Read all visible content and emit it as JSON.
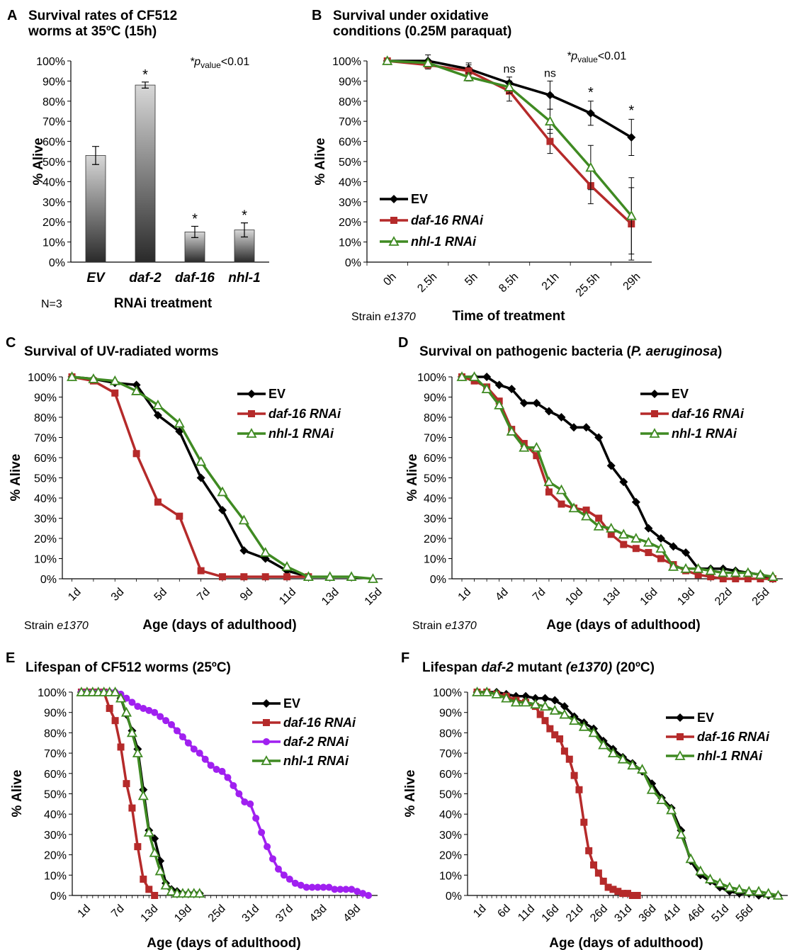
{
  "chart_data": [
    {
      "id": "A",
      "letter": "A",
      "type": "bar",
      "title_lines": [
        "Survival rates of CF512",
        "worms at 35ºC (15h)"
      ],
      "ylabel": "% Alive",
      "xlabel": "RNAi treatment",
      "note": "N=3",
      "pvalue": {
        "prefix": "*p",
        "sub": "value",
        "suffix": "<0.01"
      },
      "categories": [
        "EV",
        "daf-2",
        "daf-16",
        "nhl-1"
      ],
      "values": [
        53,
        88,
        15,
        16
      ],
      "errors": [
        4.5,
        1.5,
        2.8,
        3.5
      ],
      "significance": [
        "",
        "*",
        "*",
        "*"
      ],
      "ylim": [
        0,
        100
      ],
      "yticks": [
        "0%",
        "10%",
        "20%",
        "30%",
        "40%",
        "50%",
        "60%",
        "70%",
        "80%",
        "90%",
        "100%"
      ]
    },
    {
      "id": "B",
      "letter": "B",
      "type": "line",
      "title_lines": [
        "Survival under oxidative",
        "conditions (0.25M paraquat)"
      ],
      "ylabel": "% Alive",
      "xlabel": "Time of treatment",
      "strain_label": "Strain ",
      "strain_value": "e1370",
      "pvalue": {
        "prefix": "*p",
        "sub": "value",
        "suffix": "<0.01"
      },
      "categories": [
        "0h",
        "2.5h",
        "5h",
        "8.5h",
        "21h",
        "25.5h",
        "29h"
      ],
      "annotations": [
        "",
        "",
        "",
        "ns",
        "ns",
        "*",
        "*"
      ],
      "ylim": [
        0,
        100
      ],
      "yticks": [
        "0%",
        "10%",
        "20%",
        "30%",
        "40%",
        "50%",
        "60%",
        "70%",
        "80%",
        "90%",
        "100%"
      ],
      "series": [
        {
          "name": "EV",
          "color": "#000000",
          "marker": "diamond",
          "values": [
            100,
            100,
            96,
            89,
            83,
            74,
            62
          ],
          "errors": [
            0,
            3,
            3,
            3,
            7,
            6,
            9
          ]
        },
        {
          "name": "daf-16 RNAi",
          "color": "#b52a2a",
          "marker": "square",
          "values": [
            100,
            98,
            95,
            85,
            60,
            38,
            19
          ],
          "errors": [
            0,
            2,
            3,
            5,
            6,
            9,
            18
          ]
        },
        {
          "name": "nhl-1 RNAi",
          "color": "#3f8a22",
          "marker": "triangle",
          "values": [
            100,
            99,
            92,
            87,
            70,
            47,
            23
          ],
          "errors": [
            0,
            1,
            2,
            3,
            6,
            11,
            19
          ]
        }
      ]
    },
    {
      "id": "C",
      "letter": "C",
      "type": "line",
      "title_lines": [
        "Survival of UV-radiated worms"
      ],
      "ylabel": "% Alive",
      "xlabel": "Age (days of adulthood)",
      "strain_label": "Strain ",
      "strain_value": "e1370",
      "xrange": [
        1,
        15
      ],
      "xticks": [
        1,
        3,
        5,
        7,
        9,
        11,
        13,
        15
      ],
      "xtick_labels": [
        "1d",
        "3d",
        "5d",
        "7d",
        "9d",
        "11d",
        "13d",
        "15d"
      ],
      "ylim": [
        0,
        100
      ],
      "yticks": [
        "0%",
        "10%",
        "20%",
        "30%",
        "40%",
        "50%",
        "60%",
        "70%",
        "80%",
        "90%",
        "100%"
      ],
      "series": [
        {
          "name": "EV",
          "color": "#000000",
          "marker": "diamond",
          "x": [
            1,
            2,
            3,
            4,
            5,
            6,
            7,
            8,
            9,
            10,
            11,
            12
          ],
          "values": [
            100,
            99,
            97,
            96,
            81,
            73,
            50,
            34,
            14,
            10,
            4,
            1
          ]
        },
        {
          "name": "daf-16 RNAi",
          "color": "#b52a2a",
          "marker": "square",
          "x": [
            1,
            2,
            3,
            4,
            5,
            6,
            7,
            8,
            9,
            10,
            11,
            12
          ],
          "values": [
            100,
            98,
            92,
            62,
            38,
            31,
            4,
            1,
            1,
            1,
            1,
            1
          ]
        },
        {
          "name": "nhl-1 RNAi",
          "color": "#3f8a22",
          "marker": "triangle",
          "x": [
            1,
            2,
            3,
            4,
            5,
            6,
            7,
            8,
            9,
            10,
            11,
            12,
            13,
            14,
            15
          ],
          "values": [
            100,
            99,
            98,
            93,
            86,
            77,
            58,
            43,
            29,
            13,
            6,
            1,
            1,
            1,
            0
          ]
        }
      ]
    },
    {
      "id": "D",
      "letter": "D",
      "type": "line",
      "title_parts": [
        "Survival on pathogenic bacteria (",
        "P. aeruginosa",
        ")"
      ],
      "ylabel": "% Alive",
      "xlabel": "Age (days of adulthood)",
      "strain_label": "Strain ",
      "strain_value": "e1370",
      "xrange": [
        1,
        26
      ],
      "xticks": [
        1,
        4,
        7,
        10,
        13,
        16,
        19,
        22,
        25
      ],
      "xtick_labels": [
        "1d",
        "4d",
        "7d",
        "10d",
        "13d",
        "16d",
        "19d",
        "22d",
        "25d"
      ],
      "ylim": [
        0,
        100
      ],
      "yticks": [
        "0%",
        "10%",
        "20%",
        "30%",
        "40%",
        "50%",
        "60%",
        "70%",
        "80%",
        "90%",
        "100%"
      ],
      "series": [
        {
          "name": "EV",
          "color": "#000000",
          "marker": "diamond",
          "x": [
            1,
            2,
            3,
            4,
            5,
            6,
            7,
            8,
            9,
            10,
            11,
            12,
            13,
            14,
            15,
            16,
            17,
            18,
            19,
            20,
            21,
            22,
            23,
            24,
            25,
            26
          ],
          "values": [
            100,
            100,
            100,
            96,
            94,
            87,
            87,
            83,
            80,
            75,
            75,
            70,
            56,
            48,
            38,
            25,
            20,
            16,
            13,
            5,
            5,
            5,
            4,
            3,
            2,
            0
          ]
        },
        {
          "name": "daf-16 RNAi",
          "color": "#b52a2a",
          "marker": "square",
          "x": [
            1,
            2,
            3,
            4,
            5,
            6,
            7,
            8,
            9,
            10,
            11,
            12,
            13,
            14,
            15,
            16,
            17,
            18,
            19,
            20,
            21,
            22,
            23,
            24,
            25,
            26
          ],
          "values": [
            100,
            98,
            95,
            88,
            74,
            67,
            61,
            43,
            37,
            35,
            34,
            30,
            22,
            17,
            15,
            13,
            10,
            7,
            4,
            2,
            1,
            0,
            0,
            0,
            0,
            0
          ]
        },
        {
          "name": "nhl-1 RNAi",
          "color": "#3f8a22",
          "marker": "triangle",
          "x": [
            1,
            2,
            3,
            4,
            5,
            6,
            7,
            8,
            9,
            10,
            11,
            12,
            13,
            14,
            15,
            16,
            17,
            18,
            19,
            20,
            21,
            22,
            23,
            24,
            25,
            26
          ],
          "values": [
            100,
            100,
            94,
            86,
            73,
            65,
            65,
            48,
            44,
            35,
            31,
            26,
            25,
            22,
            20,
            18,
            15,
            6,
            5,
            5,
            4,
            3,
            3,
            3,
            2,
            1
          ]
        }
      ]
    },
    {
      "id": "E",
      "letter": "E",
      "type": "line",
      "title_parts": [
        "Lifespan of CF512 worms (25ºC)"
      ],
      "ylabel": "% Alive",
      "xlabel": "Age (days of adulthood)",
      "xrange": [
        1,
        52
      ],
      "xticks": [
        1,
        7,
        13,
        19,
        25,
        31,
        37,
        43,
        49
      ],
      "xtick_labels": [
        "1d",
        "7d",
        "13d",
        "19d",
        "25d",
        "31d",
        "37d",
        "43d",
        "49d"
      ],
      "ylim": [
        0,
        100
      ],
      "yticks": [
        "0%",
        "10%",
        "20%",
        "30%",
        "40%",
        "50%",
        "60%",
        "70%",
        "80%",
        "90%",
        "100%"
      ],
      "series": [
        {
          "name": "EV",
          "color": "#000000",
          "marker": "diamond",
          "x": [
            1,
            2,
            3,
            4,
            5,
            6,
            7,
            8,
            9,
            10,
            11,
            12,
            13,
            14,
            15,
            16,
            17,
            18,
            19,
            20,
            21,
            22
          ],
          "values": [
            100,
            100,
            100,
            100,
            100,
            100,
            100,
            97,
            89,
            81,
            72,
            52,
            32,
            28,
            17,
            6,
            3,
            2,
            1,
            1,
            1,
            1
          ]
        },
        {
          "name": "daf-16 RNAi",
          "color": "#b52a2a",
          "marker": "square",
          "x": [
            1,
            2,
            3,
            4,
            5,
            6,
            7,
            8,
            9,
            10,
            11,
            12,
            13,
            14
          ],
          "values": [
            100,
            100,
            100,
            100,
            100,
            92,
            86,
            73,
            55,
            43,
            24,
            8,
            3,
            0
          ]
        },
        {
          "name": "daf-2 RNAi",
          "color": "#a020f0",
          "marker": "circle",
          "x": [
            1,
            2,
            3,
            4,
            5,
            6,
            7,
            8,
            9,
            10,
            11,
            12,
            13,
            14,
            15,
            16,
            17,
            18,
            19,
            20,
            21,
            22,
            23,
            24,
            25,
            26,
            27,
            28,
            29,
            30,
            31,
            32,
            33,
            34,
            35,
            36,
            37,
            38,
            39,
            40,
            41,
            42,
            43,
            44,
            45,
            46,
            47,
            48,
            49,
            50,
            51,
            52
          ],
          "values": [
            100,
            100,
            100,
            100,
            100,
            100,
            100,
            99,
            97,
            95,
            93,
            92,
            91,
            90,
            88,
            86,
            84,
            81,
            78,
            75,
            72,
            70,
            67,
            64,
            62,
            61,
            58,
            54,
            50,
            46,
            45,
            38,
            31,
            24,
            18,
            13,
            10,
            8,
            6,
            5,
            4,
            4,
            4,
            4,
            4,
            3,
            3,
            3,
            3,
            2,
            1,
            0
          ]
        },
        {
          "name": "nhl-1 RNAi",
          "color": "#3f8a22",
          "marker": "triangle",
          "x": [
            1,
            2,
            3,
            4,
            5,
            6,
            7,
            8,
            9,
            10,
            11,
            12,
            13,
            14,
            15,
            16,
            17,
            18,
            19,
            20,
            21,
            22
          ],
          "values": [
            100,
            100,
            100,
            100,
            100,
            100,
            100,
            97,
            90,
            80,
            70,
            49,
            31,
            21,
            12,
            5,
            2,
            1,
            1,
            1,
            1,
            1
          ]
        }
      ]
    },
    {
      "id": "F",
      "letter": "F",
      "type": "line",
      "title_parts": [
        "Lifespan ",
        "daf-2",
        " mutant ",
        "(e1370)",
        " (20ºC)"
      ],
      "ylabel": "% Alive",
      "xlabel": "Age (days of adulthood)",
      "xrange": [
        1,
        63
      ],
      "xticks": [
        1,
        6,
        11,
        16,
        21,
        26,
        31,
        36,
        41,
        46,
        51,
        56
      ],
      "xtick_labels": [
        "1d",
        "6d",
        "11d",
        "16d",
        "21d",
        "26d",
        "31d",
        "36d",
        "41d",
        "46d",
        "51d",
        "56d"
      ],
      "ylim": [
        0,
        100
      ],
      "yticks": [
        "0%",
        "10%",
        "20%",
        "30%",
        "40%",
        "50%",
        "60%",
        "70%",
        "80%",
        "90%",
        "100%"
      ],
      "series": [
        {
          "name": "EV",
          "color": "#000000",
          "marker": "diamond",
          "x": [
            1,
            3,
            5,
            7,
            9,
            11,
            13,
            15,
            17,
            19,
            21,
            23,
            25,
            27,
            29,
            31,
            33,
            35,
            37,
            39,
            41,
            43,
            45,
            47,
            49,
            51,
            53,
            55,
            57,
            59,
            61,
            63
          ],
          "values": [
            100,
            100,
            100,
            99,
            98,
            98,
            97,
            97,
            96,
            93,
            88,
            85,
            82,
            76,
            72,
            68,
            65,
            61,
            55,
            48,
            43,
            32,
            17,
            10,
            7,
            4,
            2,
            1,
            1,
            0,
            0,
            0
          ]
        },
        {
          "name": "daf-16 RNAi",
          "color": "#b52a2a",
          "marker": "square",
          "x": [
            1,
            3,
            5,
            7,
            9,
            11,
            13,
            14,
            15,
            16,
            17,
            18,
            19,
            20,
            21,
            22,
            23,
            24,
            25,
            26,
            27,
            28,
            29,
            30,
            31,
            32,
            33,
            34
          ],
          "values": [
            100,
            100,
            99,
            98,
            96,
            95,
            93,
            89,
            86,
            82,
            79,
            77,
            71,
            67,
            59,
            52,
            36,
            22,
            15,
            11,
            7,
            4,
            3,
            2,
            1,
            1,
            0,
            0
          ]
        },
        {
          "name": "nhl-1 RNAi",
          "color": "#3f8a22",
          "marker": "triangle",
          "x": [
            1,
            3,
            5,
            7,
            9,
            11,
            13,
            15,
            17,
            19,
            21,
            23,
            25,
            27,
            29,
            31,
            33,
            35,
            37,
            39,
            41,
            43,
            45,
            47,
            49,
            51,
            53,
            55,
            57,
            59,
            61,
            63
          ],
          "values": [
            100,
            100,
            99,
            97,
            95,
            95,
            94,
            93,
            91,
            89,
            86,
            83,
            80,
            74,
            70,
            67,
            64,
            62,
            52,
            47,
            42,
            30,
            18,
            12,
            8,
            6,
            4,
            3,
            2,
            2,
            1,
            0
          ]
        }
      ]
    }
  ]
}
